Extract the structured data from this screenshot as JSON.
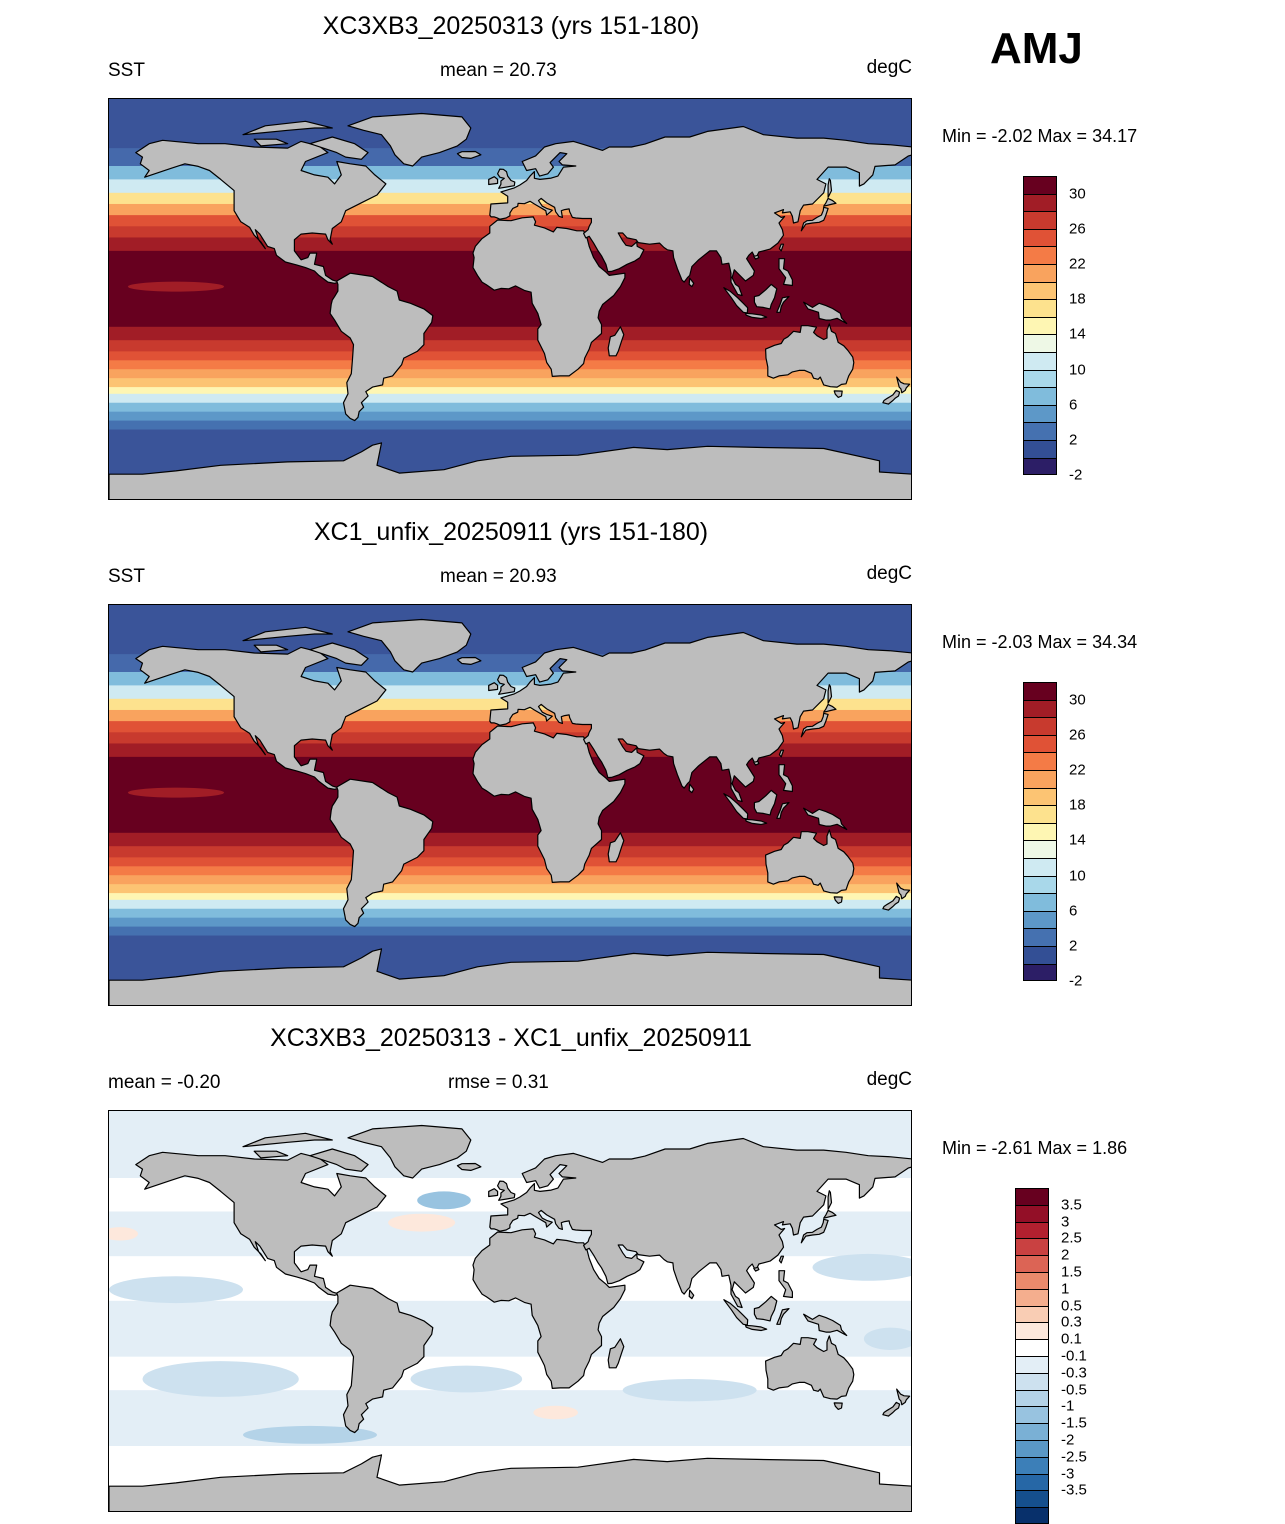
{
  "season_label": "AMJ",
  "panels": [
    {
      "title": "XC3XB3_20250313 (yrs 151-180)",
      "left_label": "SST",
      "center_label": "mean =  20.73",
      "right_label": "degC",
      "minmax": "Min =  -2.02 Max =  34.17",
      "kind": "field"
    },
    {
      "title": "XC1_unfix_20250911 (yrs 151-180)",
      "left_label": "SST",
      "center_label": "mean =  20.93",
      "right_label": "degC",
      "minmax": "Min =  -2.03 Max =  34.34",
      "kind": "field"
    },
    {
      "title": "XC3XB3_20250313 - XC1_unfix_20250911",
      "left_label": "mean =  -0.20",
      "center_label": "rmse =   0.31",
      "right_label": "degC",
      "minmax": "Min =  -2.61 Max =   1.86",
      "kind": "diff"
    }
  ],
  "sst_colorbar": {
    "colors": [
      "#67001f",
      "#a11d26",
      "#c83a2e",
      "#e05236",
      "#f47b46",
      "#f9a35e",
      "#fcc473",
      "#fde28e",
      "#fef6b3",
      "#eef8e6",
      "#cfeaf2",
      "#a9d8ea",
      "#80bcdc",
      "#5d98c8",
      "#4571b0",
      "#334f95",
      "#2c1e66"
    ],
    "labels": [
      "30",
      "26",
      "22",
      "18",
      "14",
      "10",
      "6",
      "2",
      "-2"
    ]
  },
  "diff_colorbar": {
    "colors": [
      "#67001f",
      "#930f27",
      "#b2202f",
      "#c94141",
      "#dc6455",
      "#ea8a6c",
      "#f4ae8e",
      "#f9cdb4",
      "#fde8dc",
      "#ffffff",
      "#e3eef6",
      "#cde1ef",
      "#b4d3e8",
      "#98c3e0",
      "#7ab0d5",
      "#5a98c6",
      "#3c7fb8",
      "#2667a6",
      "#154f8d",
      "#08306b"
    ],
    "labels": [
      "3.5",
      "3",
      "2.5",
      "2",
      "1.5",
      "1",
      "0.5",
      "0.3",
      "0.1",
      "-0.1",
      "-0.3",
      "-0.5",
      "-1",
      "-1.5",
      "-2",
      "-2.5",
      "-3",
      "-3.5"
    ]
  }
}
